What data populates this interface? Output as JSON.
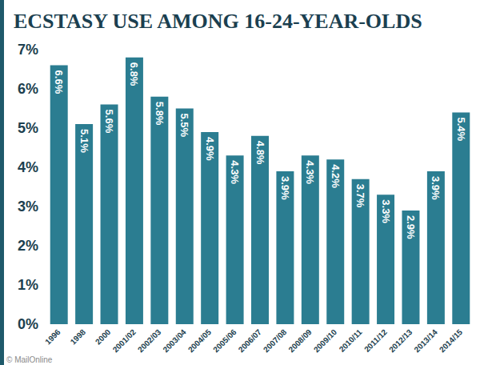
{
  "chart_data": {
    "type": "bar",
    "title": "ECSTASY USE AMONG 16-24-YEAR-OLDS",
    "categories": [
      "1996",
      "1998",
      "2000",
      "2001/02",
      "2002/03",
      "2003/04",
      "2004/05",
      "2005/06",
      "2006/07",
      "2007/08",
      "2008/09",
      "2009/10",
      "2010/11",
      "2011/12",
      "2012/13",
      "2013/14",
      "2014/15"
    ],
    "values": [
      6.6,
      5.1,
      5.6,
      6.8,
      5.8,
      5.5,
      4.9,
      4.3,
      4.8,
      3.9,
      4.3,
      4.2,
      3.7,
      3.3,
      2.9,
      3.9,
      5.4
    ],
    "value_labels": [
      "6.6%",
      "5.1%",
      "5.6%",
      "6.8%",
      "5.8%",
      "5.5%",
      "4.9%",
      "4.3%",
      "4.8%",
      "3.9%",
      "4.3%",
      "4.2%",
      "3.7%",
      "3.3%",
      "2.9%",
      "3.9%",
      "5.4%"
    ],
    "color": "#2b7d91",
    "ylim": [
      0,
      7
    ],
    "yticks": [
      {
        "value": 0,
        "label": "0%"
      },
      {
        "value": 1,
        "label": "1%"
      },
      {
        "value": 2,
        "label": "2%"
      },
      {
        "value": 3,
        "label": "3%"
      },
      {
        "value": 4,
        "label": "4%"
      },
      {
        "value": 5,
        "label": "5%"
      },
      {
        "value": 6,
        "label": "6%"
      },
      {
        "value": 7,
        "label": "7%"
      }
    ],
    "grid": false,
    "data_labels": true,
    "annotations": [
      "© MailOnline"
    ]
  }
}
